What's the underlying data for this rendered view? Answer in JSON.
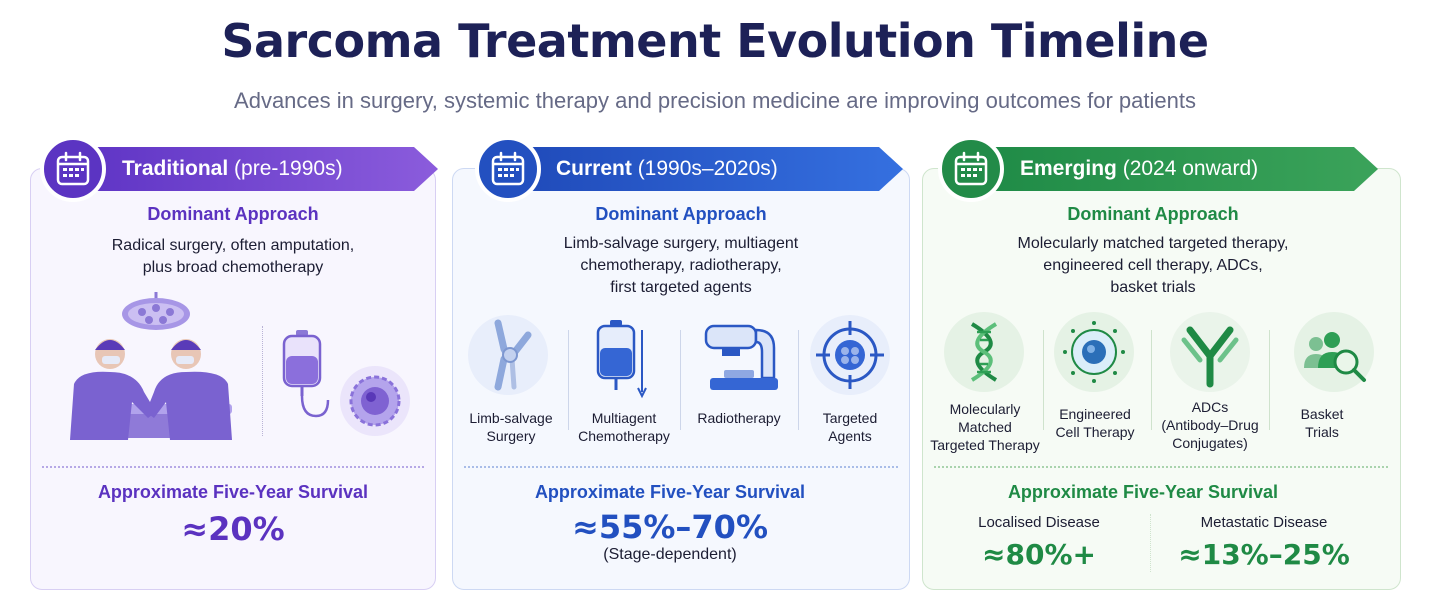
{
  "title": "Sarcoma Treatment Evolution Timeline",
  "subtitle": "Advances in surgery, systemic therapy and precision medicine are improving outcomes for patients",
  "colors": {
    "traditional": "#5b32c0",
    "current": "#2250c0",
    "emerging": "#1f8a45"
  },
  "phases": [
    {
      "name": "Traditional",
      "period": "(pre-1990s)",
      "icon": "calendar-icon",
      "approach_heading": "Dominant Approach",
      "approach_lines": [
        "Radical surgery, often amputation,",
        "plus broad chemotherapy"
      ],
      "illustrations": [
        "surgeons-operating-icon",
        "surgical-lamp-icon",
        "iv-bag-icon",
        "cancer-cell-icon"
      ],
      "survival_heading": "Approximate Five-Year Survival",
      "survival_value": "≈20%"
    },
    {
      "name": "Current",
      "period": "(1990s–2020s)",
      "icon": "calendar-icon",
      "approach_heading": "Dominant Approach",
      "approach_lines": [
        "Limb-salvage surgery, multiagent",
        "chemotherapy, radiotherapy,",
        "first targeted agents"
      ],
      "items": [
        {
          "icon": "knee-joint-icon",
          "label_lines": [
            "Limb-salvage",
            "Surgery"
          ]
        },
        {
          "icon": "iv-bag-icon",
          "label_lines": [
            "Multiagent",
            "Chemotherapy"
          ]
        },
        {
          "icon": "radiotherapy-machine-icon",
          "label_lines": [
            "Radiotherapy"
          ]
        },
        {
          "icon": "target-cell-icon",
          "label_lines": [
            "Targeted",
            "Agents"
          ]
        }
      ],
      "survival_heading": "Approximate Five-Year Survival",
      "survival_value": "≈55%–70%",
      "survival_note": "(Stage-dependent)"
    },
    {
      "name": "Emerging",
      "period": "(2024 onward)",
      "icon": "calendar-icon",
      "approach_heading": "Dominant Approach",
      "approach_lines": [
        "Molecularly matched targeted therapy,",
        "engineered cell therapy, ADCs,",
        "basket trials"
      ],
      "items": [
        {
          "icon": "dna-icon",
          "label_lines": [
            "Molecularly",
            "Matched",
            "Targeted Therapy"
          ]
        },
        {
          "icon": "engineered-cell-icon",
          "label_lines": [
            "Engineered",
            "Cell Therapy"
          ]
        },
        {
          "icon": "antibody-icon",
          "label_lines": [
            "ADCs",
            "(Antibody–Drug",
            "Conjugates)"
          ]
        },
        {
          "icon": "patients-search-icon",
          "label_lines": [
            "Basket",
            "Trials"
          ]
        }
      ],
      "survival_heading": "Approximate Five-Year Survival",
      "survival_split": [
        {
          "label": "Localised Disease",
          "value": "≈80%+"
        },
        {
          "label": "Metastatic Disease",
          "value": "≈13%–25%"
        }
      ]
    }
  ]
}
